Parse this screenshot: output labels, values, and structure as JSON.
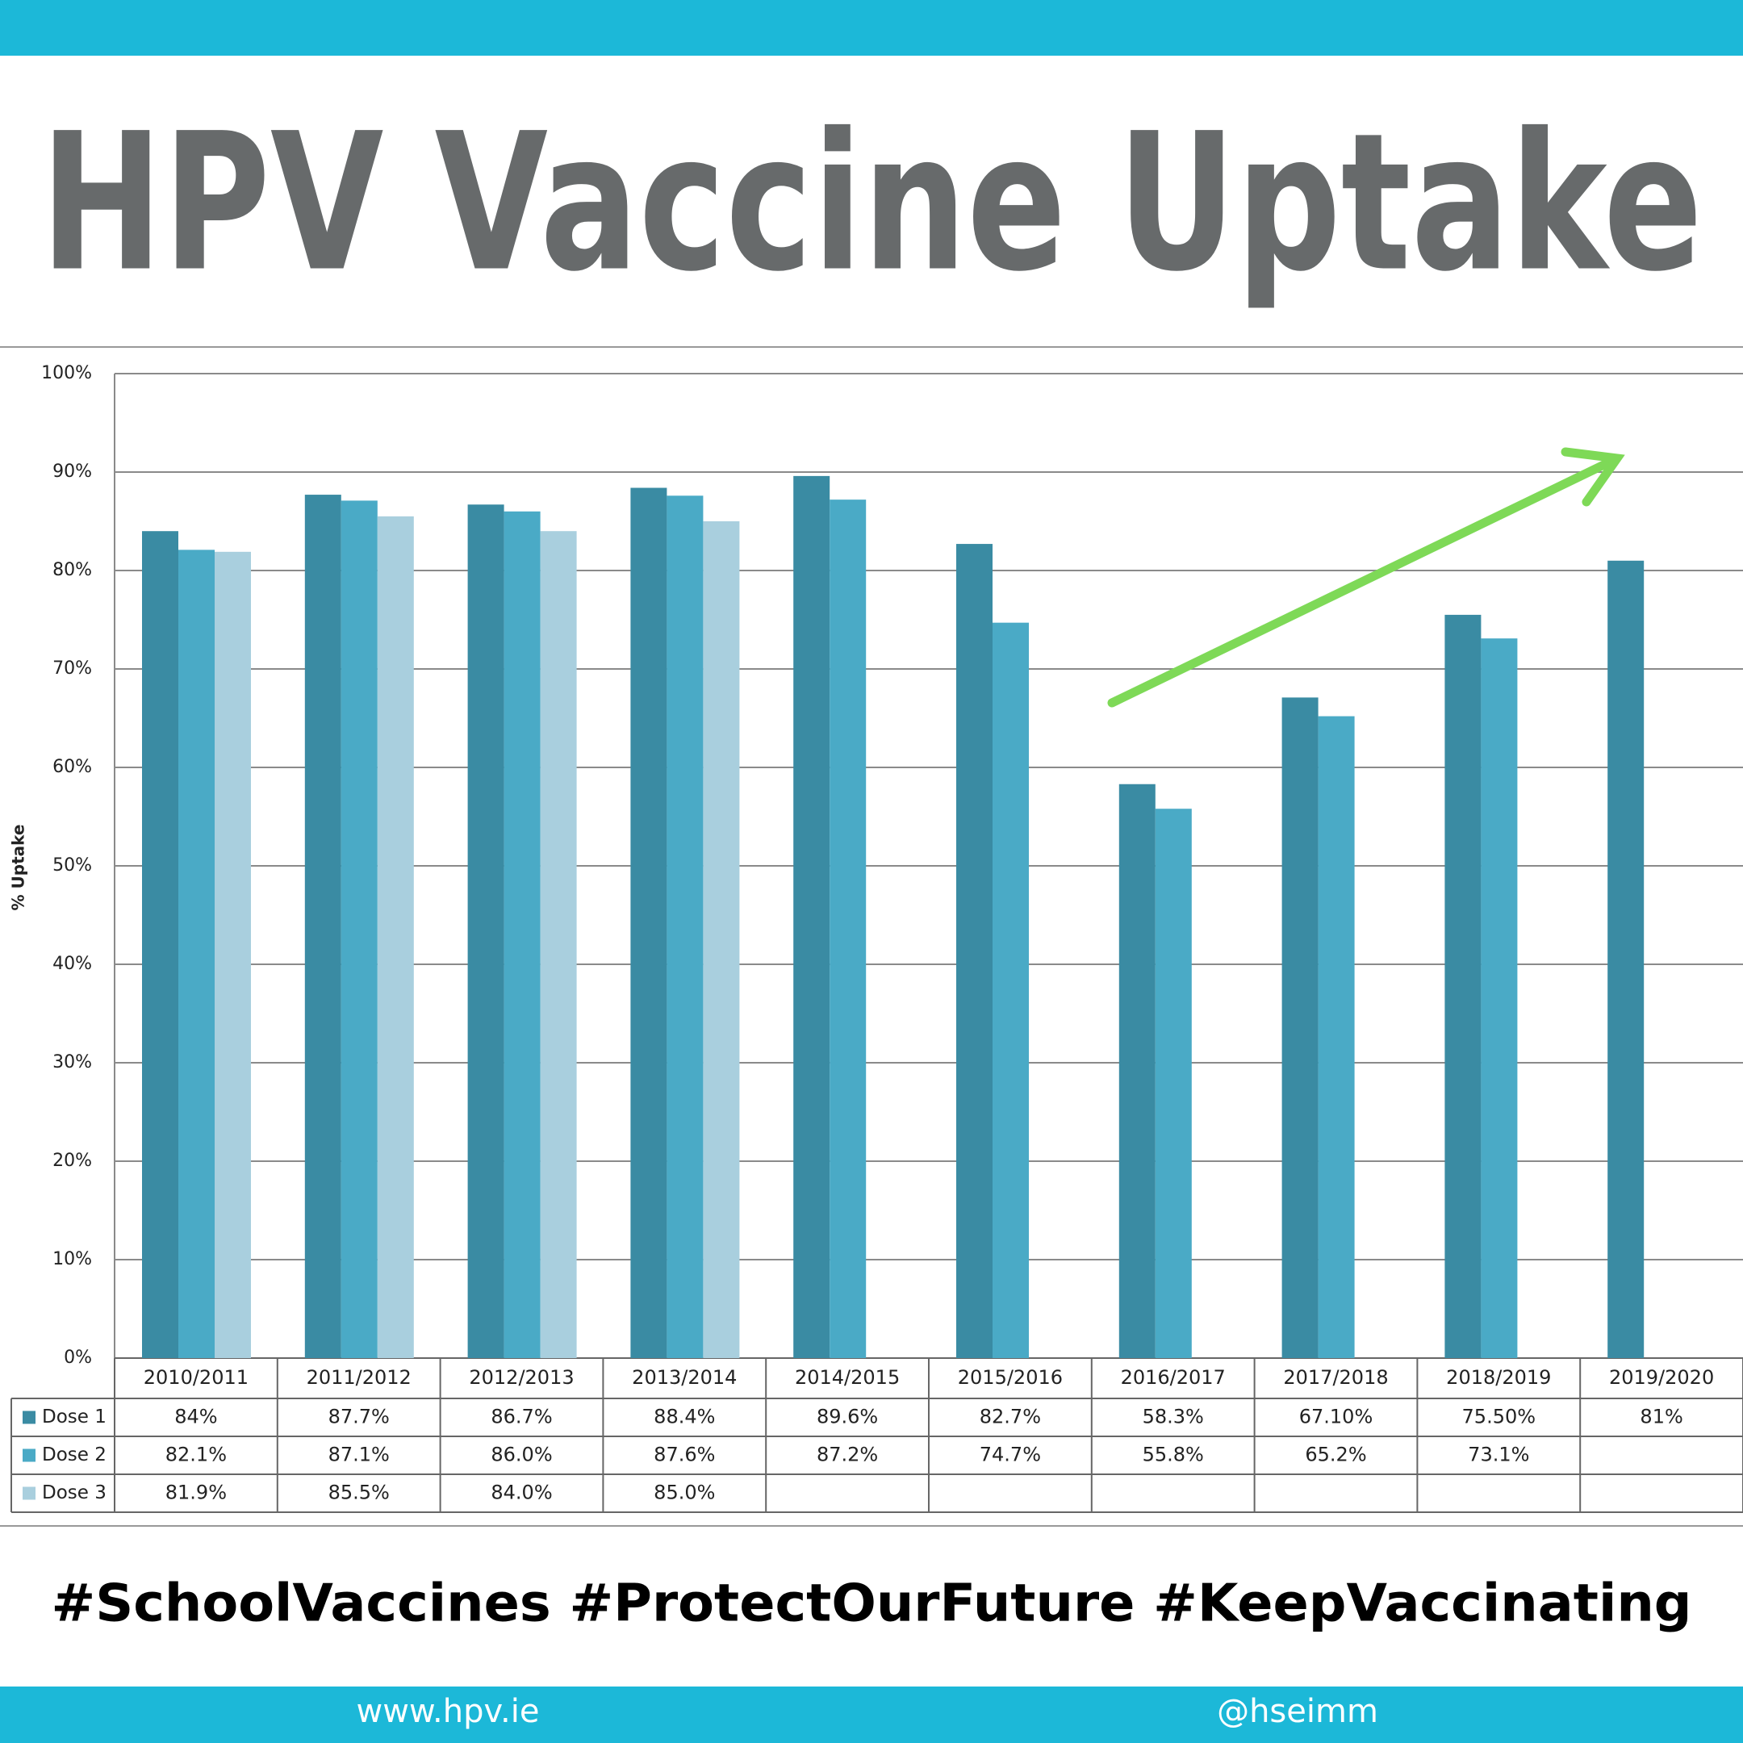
{
  "chart_data": {
    "type": "bar",
    "title": "HPV Vaccine Uptake",
    "y_label": "% Uptake",
    "categories": [
      "2010/2011",
      "2011/2012",
      "2012/2013",
      "2013/2014",
      "2014/2015",
      "2015/2016",
      "2016/2017",
      "2017/2018",
      "2018/2019",
      "2019/2020"
    ],
    "series": [
      {
        "name": "Dose 1",
        "color": "#3a8ba3",
        "values": [
          84,
          87.7,
          86.7,
          88.4,
          89.6,
          82.7,
          58.3,
          67.1,
          75.5,
          81
        ],
        "value_labels": [
          "84%",
          "87.7%",
          "86.7%",
          "88.4%",
          "89.6%",
          "82.7%",
          "58.3%",
          "67.10%",
          "75.50%",
          "81%"
        ]
      },
      {
        "name": "Dose 2",
        "color": "#4aaac6",
        "values": [
          82.1,
          87.1,
          86.0,
          87.6,
          87.2,
          74.7,
          55.8,
          65.2,
          73.1,
          null
        ],
        "value_labels": [
          "82.1%",
          "87.1%",
          "86.0%",
          "87.6%",
          "87.2%",
          "74.7%",
          "55.8%",
          "65.2%",
          "73.1%",
          null
        ]
      },
      {
        "name": "Dose 3",
        "color": "#a9cfde",
        "values": [
          81.9,
          85.5,
          84.0,
          85.0,
          null,
          null,
          null,
          null,
          null,
          null
        ],
        "value_labels": [
          "81.9%",
          "85.5%",
          "84.0%",
          "85.0%",
          null,
          null,
          null,
          null,
          null,
          null
        ]
      }
    ],
    "ylim": [
      0,
      100
    ],
    "yticks": [
      {
        "value": 0,
        "label": "0%"
      },
      {
        "value": 10,
        "label": "10%"
      },
      {
        "value": 20,
        "label": "20%"
      },
      {
        "value": 30,
        "label": "30%"
      },
      {
        "value": 40,
        "label": "40%"
      },
      {
        "value": 50,
        "label": "50%"
      },
      {
        "value": 60,
        "label": "60%"
      },
      {
        "value": 70,
        "label": "70%"
      },
      {
        "value": 80,
        "label": "80%"
      },
      {
        "value": 90,
        "label": "90%"
      },
      {
        "value": 100,
        "label": "100%"
      }
    ],
    "grid": true
  },
  "footer": {
    "hashtags": "#SchoolVaccines #ProtectOurFuture #KeepVaccinating",
    "website": "www.hpv.ie",
    "handle": "@hseimm"
  }
}
